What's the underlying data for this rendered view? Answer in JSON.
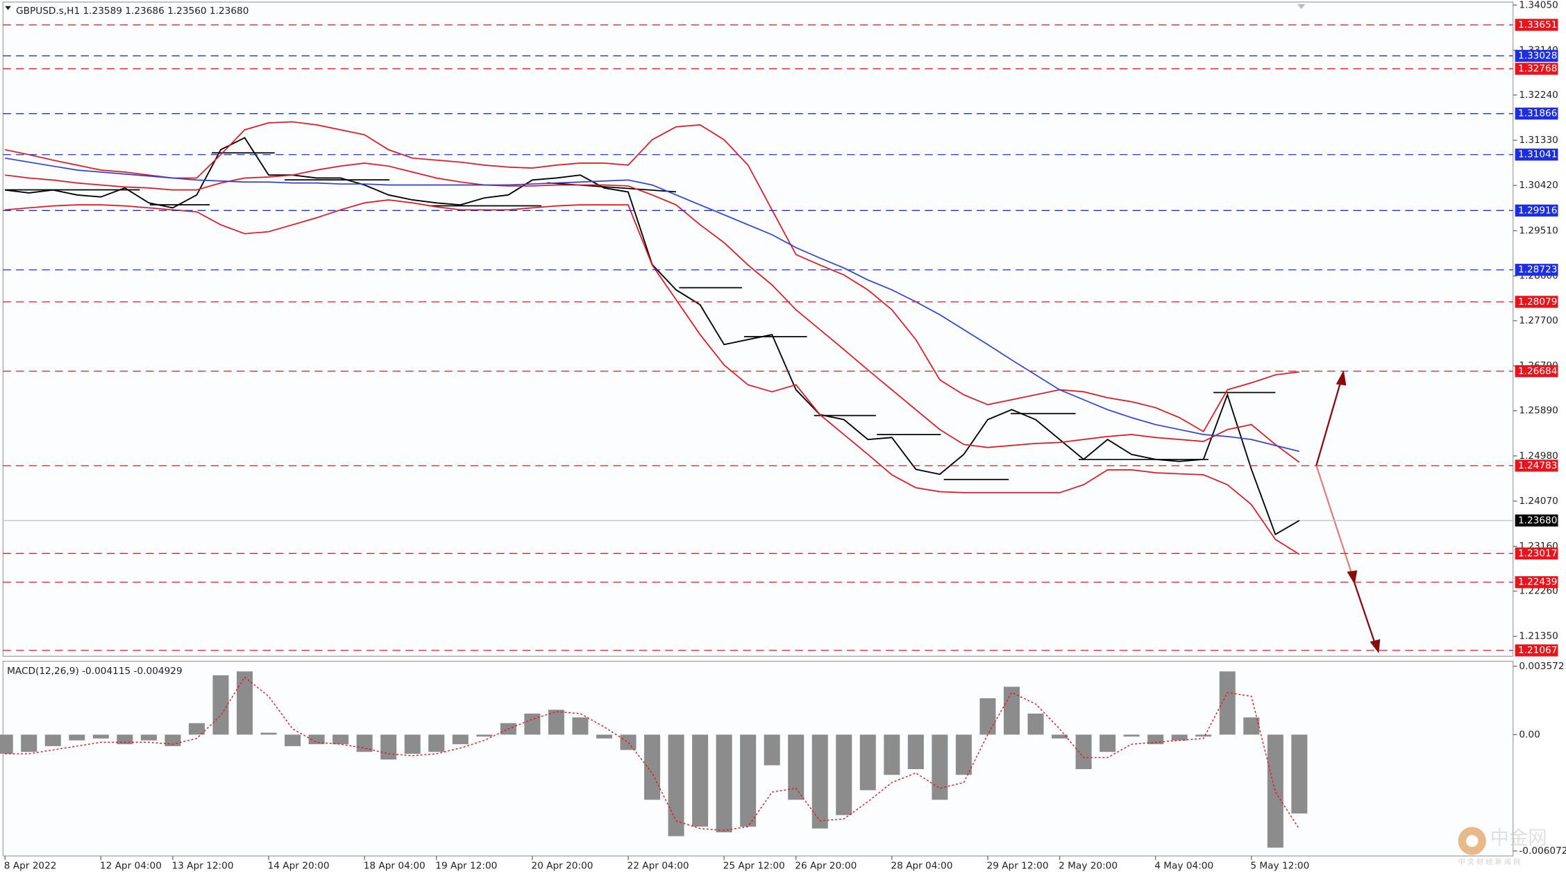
{
  "header": {
    "symbol": "GBPUSD.s,H1  1.23589 1.23686 1.23560 1.23680"
  },
  "watermark": {
    "title": "中金网",
    "subtitle": "中 文 财 经 新 闻 网"
  },
  "chart_data": [
    {
      "type": "line",
      "categories": [
        "8 Apr 2022",
        null,
        null,
        null,
        "12 Apr 04:00",
        null,
        null,
        "13 Apr 12:00",
        null,
        null,
        null,
        "14 Apr 20:00",
        null,
        null,
        null,
        "18 Apr 04:00",
        null,
        null,
        "19 Apr 12:00",
        null,
        null,
        null,
        "20 Apr 20:00",
        null,
        null,
        null,
        "22 Apr 04:00",
        null,
        null,
        null,
        "25 Apr 12:00",
        null,
        null,
        "26 Apr 20:00",
        null,
        null,
        null,
        "28 Apr 04:00",
        null,
        null,
        null,
        "29 Apr 12:00",
        null,
        null,
        "2 May 20:00",
        null,
        null,
        null,
        "4 May 04:00",
        null,
        null,
        null,
        "5 May 12:00",
        null,
        null
      ],
      "series": [
        {
          "color": "#000000",
          "values": [
            1.3033,
            1.3027,
            1.3033,
            1.3023,
            1.3019,
            1.3037,
            1.3007,
            1.2997,
            1.3023,
            1.3114,
            1.3138,
            1.3063,
            1.3063,
            1.3057,
            1.3057,
            1.3043,
            1.3023,
            1.3013,
            1.3007,
            1.3003,
            1.3017,
            1.3023,
            1.3053,
            1.3057,
            1.3063,
            1.3037,
            1.3029,
            1.2883,
            1.2832,
            1.2802,
            1.2722,
            1.2732,
            1.2742,
            1.2631,
            1.2581,
            1.2571,
            1.2531,
            1.2535,
            1.2471,
            1.2461,
            1.2501,
            1.2571,
            1.2591,
            1.2571,
            1.2531,
            1.2491,
            1.2531,
            1.2501,
            1.2491,
            1.2487,
            1.2491,
            1.2621,
            1.2471,
            1.234,
            1.2368
          ]
        },
        {
          "color": "#e8141c",
          "values": [
            1.3114,
            1.3104,
            1.3093,
            1.3083,
            1.3073,
            1.3069,
            1.3063,
            1.3057,
            1.3057,
            1.3104,
            1.3154,
            1.3168,
            1.317,
            1.3164,
            1.3154,
            1.3144,
            1.3114,
            1.3097,
            1.3093,
            1.3089,
            1.3083,
            1.3079,
            1.3077,
            1.3083,
            1.3087,
            1.3087,
            1.3083,
            1.3134,
            1.316,
            1.3164,
            1.3134,
            1.3083,
            1.2993,
            1.2903,
            1.2882,
            1.2862,
            1.2832,
            1.2792,
            1.2732,
            1.2651,
            1.2621,
            1.2601,
            1.2611,
            1.2621,
            1.2631,
            1.2627,
            1.2615,
            1.2607,
            1.2595,
            1.2575,
            1.2547,
            1.2631,
            1.2645,
            1.2661,
            1.2667
          ]
        },
        {
          "color": "#e8141c",
          "values": [
            1.3063,
            1.3057,
            1.3053,
            1.3047,
            1.3043,
            1.3039,
            1.3037,
            1.3033,
            1.3033,
            1.3047,
            1.3057,
            1.3059,
            1.3063,
            1.3073,
            1.3081,
            1.3087,
            1.3081,
            1.3069,
            1.3057,
            1.3049,
            1.3043,
            1.3041,
            1.3041,
            1.3043,
            1.3043,
            1.3043,
            1.3041,
            1.3023,
            1.3003,
            1.2963,
            1.2927,
            1.2882,
            1.2842,
            1.2792,
            1.2752,
            1.2712,
            1.2671,
            1.2631,
            1.2591,
            1.2551,
            1.2521,
            1.2515,
            1.2519,
            1.2523,
            1.2525,
            1.2531,
            1.2537,
            1.2541,
            1.2535,
            1.2531,
            1.2527,
            1.2551,
            1.2561,
            1.2521,
            1.2485
          ]
        },
        {
          "color": "#e8141c",
          "values": [
            1.2993,
            1.2997,
            1.3001,
            1.3003,
            1.3003,
            1.3001,
            1.2997,
            1.2993,
            1.2989,
            1.2963,
            1.2945,
            1.2949,
            1.2963,
            1.2977,
            1.2993,
            1.3007,
            1.3013,
            1.3007,
            1.2999,
            1.2993,
            1.2993,
            1.2993,
            1.2997,
            1.3001,
            1.3003,
            1.3003,
            1.3003,
            1.2882,
            1.2812,
            1.2742,
            1.2681,
            1.2641,
            1.2627,
            1.2641,
            1.2581,
            1.2541,
            1.2501,
            1.246,
            1.2434,
            1.2426,
            1.2424,
            1.2424,
            1.2424,
            1.2424,
            1.2424,
            1.244,
            1.247,
            1.247,
            1.2464,
            1.2462,
            1.246,
            1.244,
            1.24,
            1.233,
            1.23
          ]
        },
        {
          "color": "#3040e0",
          "values": [
            1.3097,
            1.3089,
            1.3081,
            1.3073,
            1.3069,
            1.3065,
            1.3061,
            1.3057,
            1.3053,
            1.3051,
            1.3049,
            1.3049,
            1.3047,
            1.3047,
            1.3045,
            1.3045,
            1.3043,
            1.3043,
            1.3043,
            1.3043,
            1.3043,
            1.3043,
            1.3045,
            1.3047,
            1.3049,
            1.3051,
            1.3053,
            1.3043,
            1.3023,
            1.3003,
            1.2983,
            1.2963,
            1.2943,
            1.2917,
            1.2896,
            1.2876,
            1.2852,
            1.2832,
            1.2808,
            1.2782,
            1.2752,
            1.2722,
            1.2691,
            1.2661,
            1.2631,
            1.2611,
            1.2591,
            1.2575,
            1.2561,
            1.2551,
            1.2541,
            1.2537,
            1.2531,
            1.2519,
            1.2507
          ]
        }
      ],
      "ylim": [
        1.2095,
        1.3411
      ],
      "yticks": [
        {
          "value": 1.3405,
          "label": "1.34050"
        },
        {
          "value": 1.3314,
          "label": "1.33140"
        },
        {
          "value": 1.3224,
          "label": "1.32240"
        },
        {
          "value": 1.3133,
          "label": "1.31330"
        },
        {
          "value": 1.3042,
          "label": "1.30420"
        },
        {
          "value": 1.2951,
          "label": "1.29510"
        },
        {
          "value": 1.286,
          "label": "1.28600"
        },
        {
          "value": 1.277,
          "label": "1.27700"
        },
        {
          "value": 1.2679,
          "label": "1.26790"
        },
        {
          "value": 1.2589,
          "label": "1.25890"
        },
        {
          "value": 1.2498,
          "label": "1.24980"
        },
        {
          "value": 1.2407,
          "label": "1.24070"
        },
        {
          "value": 1.2316,
          "label": "1.23160"
        },
        {
          "value": 1.2226,
          "label": "1.22260"
        },
        {
          "value": 1.2135,
          "label": "1.21350"
        }
      ],
      "levels": [
        {
          "value": 1.33651,
          "color": "#e8141c"
        },
        {
          "value": 1.33028,
          "color": "#1c2ee0"
        },
        {
          "value": 1.32768,
          "color": "#e8141c"
        },
        {
          "value": 1.31866,
          "color": "#1c2ee0"
        },
        {
          "value": 1.31041,
          "color": "#1c2ee0"
        },
        {
          "value": 1.29916,
          "color": "#1c2ee0"
        },
        {
          "value": 1.28723,
          "color": "#1c2ee0"
        },
        {
          "value": 1.28079,
          "color": "#e8141c"
        },
        {
          "value": 1.26684,
          "color": "#e8141c"
        },
        {
          "value": 1.24783,
          "color": "#e8141c"
        },
        {
          "value": 1.23017,
          "color": "#e8141c"
        },
        {
          "value": 1.22439,
          "color": "#e8141c"
        },
        {
          "value": 1.21067,
          "color": "#e8141c"
        }
      ],
      "last_price": {
        "value": 1.2368,
        "label": "1.23680"
      }
    },
    {
      "type": "bar",
      "title": "MACD(12,26,9) -0.004115 -0.004929",
      "color": "#8c8c8c",
      "values": [
        -0.001,
        -0.0009,
        -0.0006,
        -0.0003,
        -0.0002,
        -0.0005,
        -0.0003,
        -0.0006,
        0.0006,
        0.0031,
        0.0033,
        0.0001,
        -0.0006,
        -0.0005,
        -0.0005,
        -0.0009,
        -0.0013,
        -0.001,
        -0.0009,
        -0.0005,
        -0.0001,
        0.0006,
        0.0011,
        0.0013,
        0.0009,
        -0.0002,
        -0.0008,
        -0.0034,
        -0.0053,
        -0.0048,
        -0.0051,
        -0.0048,
        -0.0016,
        -0.0034,
        -0.0049,
        -0.0042,
        -0.0029,
        -0.0021,
        -0.0018,
        -0.0034,
        -0.0021,
        0.0019,
        0.0025,
        0.0011,
        -0.0002,
        -0.0018,
        -0.0009,
        -0.0001,
        -0.0005,
        -0.0003,
        -0.0001,
        0.0033,
        0.0009,
        -0.0059,
        -0.004115
      ],
      "signal": {
        "color": "#e8141c",
        "values": [
          -0.001,
          -0.001,
          -0.0008,
          -0.0006,
          -0.0004,
          -0.0004,
          -0.0004,
          -0.0005,
          -0.0002,
          0.001,
          0.003,
          0.002,
          0.0003,
          -0.0004,
          -0.0005,
          -0.0007,
          -0.001,
          -0.0011,
          -0.001,
          -0.0007,
          -0.0003,
          0.0003,
          0.0008,
          0.0012,
          0.0011,
          0.0004,
          -0.0004,
          -0.002,
          -0.0045,
          -0.0049,
          -0.005,
          -0.0048,
          -0.003,
          -0.0028,
          -0.0045,
          -0.0044,
          -0.0035,
          -0.0025,
          -0.002,
          -0.0028,
          -0.0025,
          0.0,
          0.0022,
          0.0016,
          0.0003,
          -0.0012,
          -0.0012,
          -0.0005,
          -0.0004,
          -0.0003,
          -0.0002,
          0.0022,
          0.002,
          -0.003,
          -0.004929
        ]
      },
      "ylim": [
        -0.006072,
        0.003572
      ],
      "yticks": [
        0.003572,
        {
          "value": 0,
          "label": "0.00"
        },
        -0.006072
      ]
    }
  ]
}
